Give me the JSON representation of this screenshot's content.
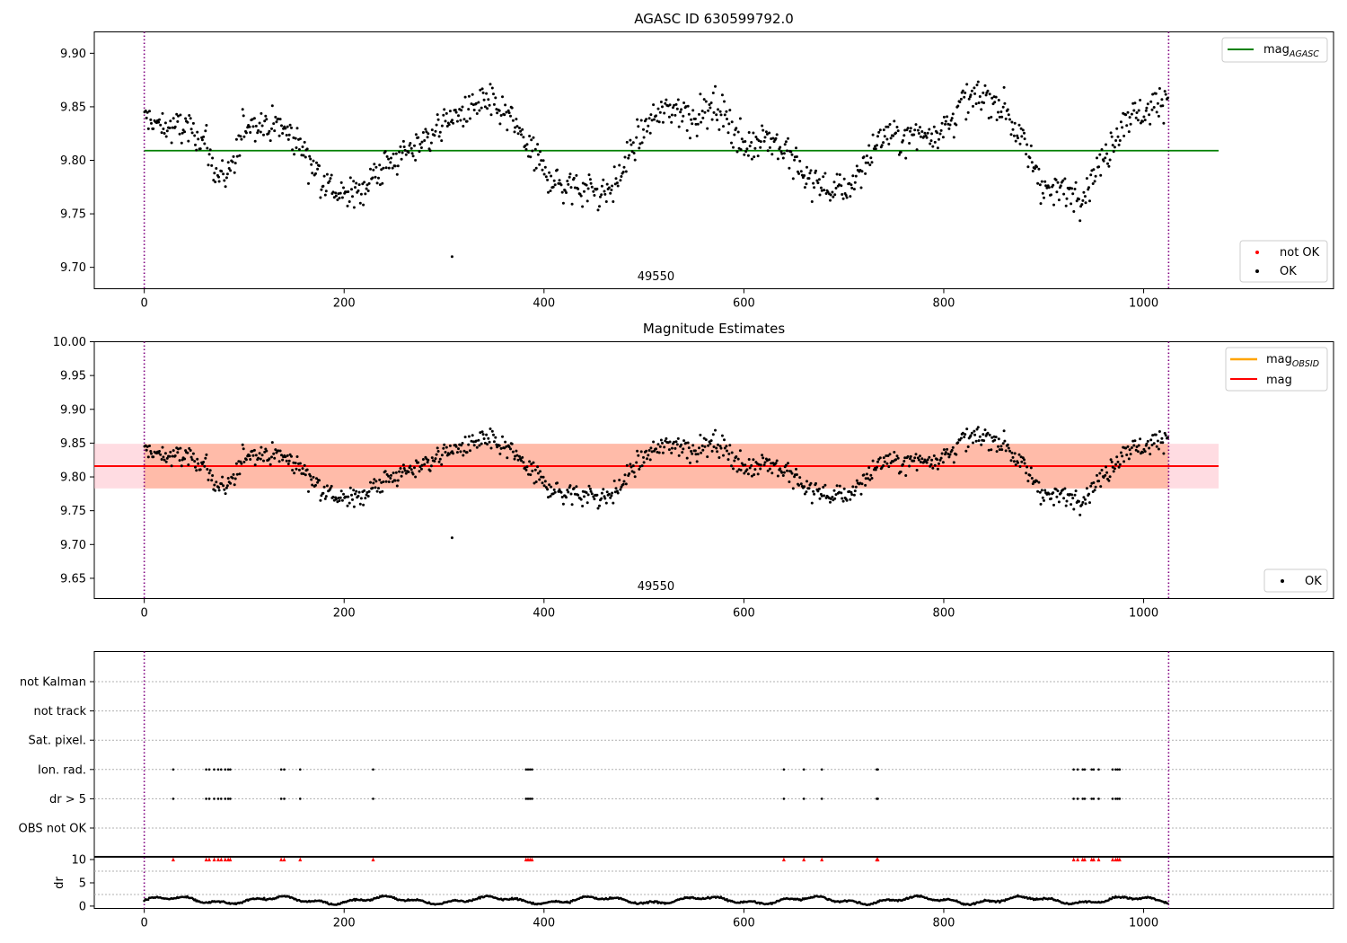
{
  "colors": {
    "ok": "#000000",
    "not_ok": "#ff0000",
    "mag_agasc": "#008000",
    "mag_obsid": "#ffa500",
    "mag": "#ff0000",
    "obs_boundary": "#800080",
    "band_obsid": "#ffa07a",
    "band_mag": "#ffc0cb",
    "grid": "#b0b0b0"
  },
  "chart_data": [
    {
      "type": "scatter",
      "title": "AGASC ID 630599792.0",
      "xlabel": "",
      "ylabel": "",
      "xlim": [
        -50,
        1190
      ],
      "ylim": [
        9.68,
        9.92
      ],
      "xticks": [
        0,
        200,
        400,
        600,
        800,
        1000
      ],
      "yticks": [
        9.7,
        9.75,
        9.8,
        9.85,
        9.9
      ],
      "xtick_labels": [
        "0",
        "200",
        "400",
        "600",
        "800",
        "1000"
      ],
      "ytick_labels": [
        "9.70",
        "9.75",
        "9.80",
        "9.85",
        "9.90"
      ],
      "obs_boundaries": [
        0,
        1025
      ],
      "obsid_label": "49550",
      "obsid_label_x": 512,
      "hline": {
        "name": "mag_AGASC",
        "y": 9.809,
        "x_range": [
          0,
          1075
        ]
      },
      "outlier": {
        "x": 308,
        "y": 9.71
      },
      "legend_lines": [
        {
          "name": "mag",
          "subscript": "AGASC",
          "color_key": "mag_agasc"
        }
      ],
      "legend_points": [
        {
          "name": "not OK",
          "color_key": "not_ok"
        },
        {
          "name": "OK",
          "color_key": "ok"
        }
      ],
      "legend_location": [
        "upper right",
        "lower right"
      ],
      "series": [
        {
          "name": "OK",
          "n": 1025,
          "x_range": [
            0,
            1025
          ]
        }
      ],
      "curve": {
        "x": [
          0,
          20,
          40,
          60,
          70,
          85,
          100,
          120,
          140,
          160,
          180,
          200,
          220,
          240,
          260,
          280,
          300,
          320,
          340,
          360,
          380,
          400,
          420,
          440,
          460,
          470,
          490,
          510,
          530,
          550,
          570,
          585,
          600,
          620,
          640,
          660,
          680,
          700,
          720,
          740,
          760,
          780,
          800,
          820,
          840,
          860,
          880,
          900,
          920,
          940,
          960,
          980,
          1000,
          1025
        ],
        "y": [
          9.84,
          9.83,
          9.83,
          9.82,
          9.79,
          9.78,
          9.835,
          9.835,
          9.83,
          9.81,
          9.78,
          9.765,
          9.775,
          9.795,
          9.805,
          9.82,
          9.835,
          9.845,
          9.855,
          9.845,
          9.82,
          9.79,
          9.775,
          9.775,
          9.77,
          9.775,
          9.815,
          9.84,
          9.85,
          9.84,
          9.85,
          9.84,
          9.81,
          9.825,
          9.81,
          9.785,
          9.775,
          9.77,
          9.795,
          9.825,
          9.82,
          9.825,
          9.83,
          9.855,
          9.86,
          9.85,
          9.815,
          9.775,
          9.77,
          9.77,
          9.8,
          9.84,
          9.845,
          9.86
        ]
      }
    },
    {
      "type": "scatter",
      "title": "Magnitude Estimates",
      "xlabel": "",
      "ylabel": "",
      "xlim": [
        -50,
        1190
      ],
      "ylim": [
        9.62,
        10.0
      ],
      "xticks": [
        0,
        200,
        400,
        600,
        800,
        1000
      ],
      "yticks": [
        9.65,
        9.7,
        9.75,
        9.8,
        9.85,
        9.9,
        9.95,
        10.0
      ],
      "xtick_labels": [
        "0",
        "200",
        "400",
        "600",
        "800",
        "1000"
      ],
      "ytick_labels": [
        "9.65",
        "9.70",
        "9.75",
        "9.80",
        "9.85",
        "9.90",
        "9.95",
        "10.00"
      ],
      "obs_boundaries": [
        0,
        1025
      ],
      "obsid_label": "49550",
      "obsid_label_x": 512,
      "bands": [
        {
          "name": "mag",
          "y_range": [
            9.783,
            9.849
          ],
          "x_range": [
            -50,
            1075
          ],
          "color_key": "band_mag"
        },
        {
          "name": "mag_OBSID",
          "y_range": [
            9.783,
            9.849
          ],
          "x_range": [
            0,
            1025
          ],
          "color_key": "band_obsid"
        }
      ],
      "hlines": [
        {
          "name": "mag_OBSID",
          "y": 9.816,
          "x_range": [
            0,
            1025
          ],
          "color_key": "mag_obsid"
        },
        {
          "name": "mag",
          "y": 9.816,
          "x_range": [
            -50,
            1075
          ],
          "color_key": "mag"
        }
      ],
      "legend_lines": [
        {
          "name": "mag",
          "subscript": "OBSID",
          "color_key": "mag_obsid"
        },
        {
          "name": "mag",
          "subscript": "",
          "color_key": "mag"
        }
      ],
      "legend_points": [
        {
          "name": "OK",
          "color_key": "ok"
        }
      ],
      "legend_location": [
        "upper right",
        "lower right"
      ]
    },
    {
      "type": "scatter",
      "title": "",
      "xlim": [
        -50,
        1190
      ],
      "flag_labels": [
        "not Kalman",
        "not track",
        "Sat. pixel.",
        "Ion. rad.",
        "dr > 5",
        "OBS not OK"
      ],
      "flagged_x": [
        29,
        62,
        65,
        70,
        74,
        77,
        81,
        84,
        86,
        137,
        140,
        156,
        229,
        382,
        384,
        386,
        388,
        640,
        660,
        678,
        733,
        734,
        930,
        934,
        939,
        941,
        948,
        950,
        955,
        969,
        972,
        974,
        976
      ],
      "flagged_rows": [
        "Ion. rad.",
        "dr > 5"
      ],
      "obs_boundaries": [
        0,
        1025
      ]
    },
    {
      "type": "scatter",
      "title": "",
      "ylabel": "dr",
      "xlim": [
        -50,
        1190
      ],
      "ylim": [
        -0.5,
        10.5
      ],
      "xticks": [
        0,
        200,
        400,
        600,
        800,
        1000
      ],
      "yticks": [
        0,
        5,
        10
      ],
      "xtick_labels": [
        "0",
        "200",
        "400",
        "600",
        "800",
        "1000"
      ],
      "ytick_labels": [
        "0",
        "5",
        "10"
      ],
      "clipped_value": 10,
      "clipped_marker": "triangle",
      "typical_dr_range": [
        0.3,
        2.2
      ],
      "obs_boundaries": [
        0,
        1025
      ]
    }
  ]
}
